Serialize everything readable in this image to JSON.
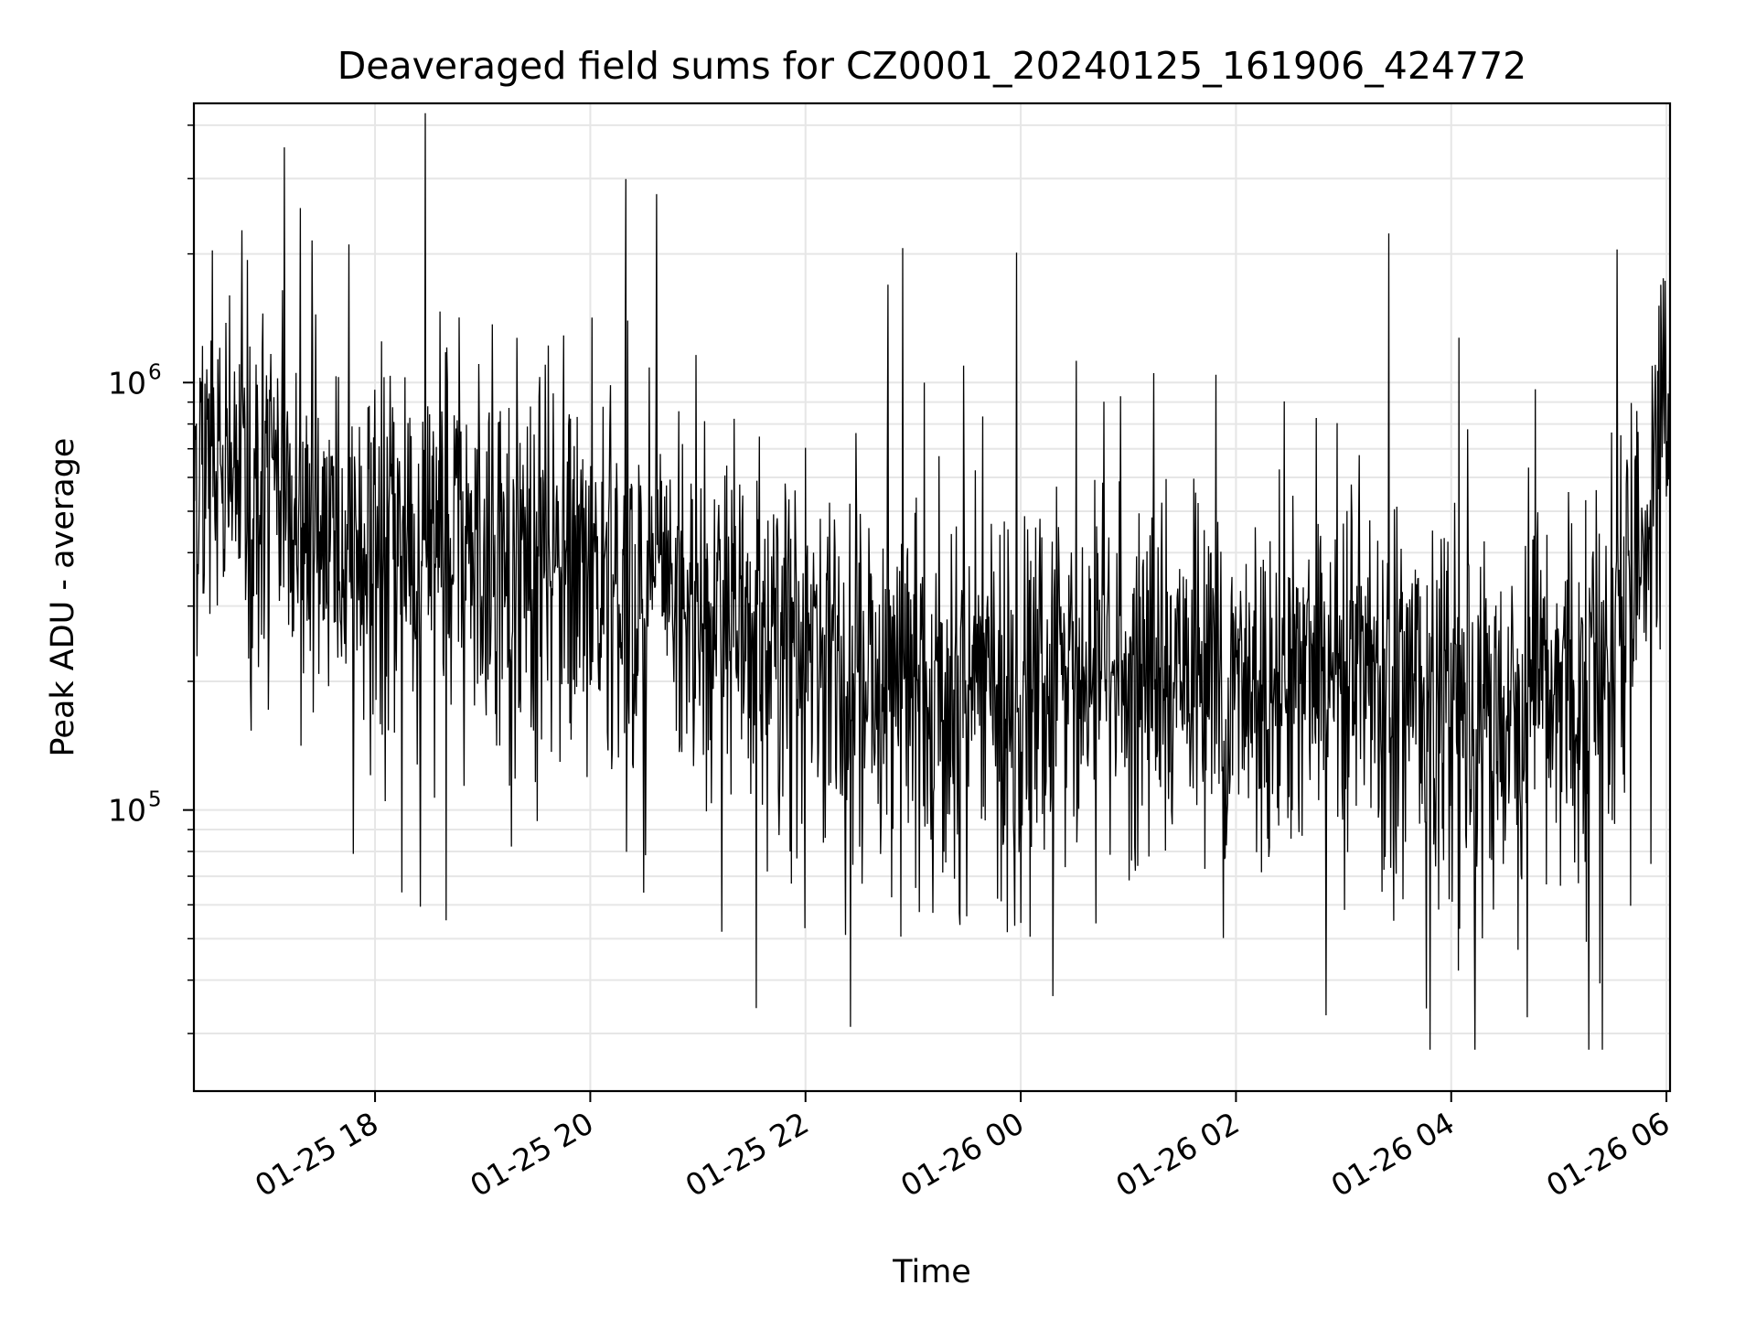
{
  "chart_data": {
    "type": "line",
    "title": "Deaveraged field sums for CZ0001_20240125_161906_424772",
    "xlabel": "Time",
    "ylabel": "Peak ADU - average",
    "x_ticks": [
      "01-25 18",
      "01-25 20",
      "01-25 22",
      "01-26 00",
      "01-26 02",
      "01-26 04",
      "01-26 06"
    ],
    "y_ticks": [
      {
        "base": "10",
        "exp": "5",
        "value": 100000
      },
      {
        "base": "10",
        "exp": "6",
        "value": 1000000
      }
    ],
    "x_range": [
      "2024-01-25 16:19",
      "2024-01-26 06:02"
    ],
    "ylim": [
      22000,
      4500000
    ],
    "yscale": "log",
    "grid": true,
    "line_color": "#000000",
    "grid_color": "#e6e6e6",
    "series": [
      {
        "x": [
          "2024-01-25 16:30",
          "2024-01-25 17:00",
          "2024-01-25 17:30",
          "2024-01-25 18:00",
          "2024-01-25 18:30",
          "2024-01-25 19:00",
          "2024-01-25 19:30",
          "2024-01-25 20:00",
          "2024-01-25 20:30",
          "2024-01-25 21:00",
          "2024-01-25 21:30",
          "2024-01-25 22:00",
          "2024-01-25 22:30",
          "2024-01-25 23:00",
          "2024-01-25 23:30",
          "2024-01-26 00:00",
          "2024-01-26 00:30",
          "2024-01-26 01:00",
          "2024-01-26 01:30",
          "2024-01-26 02:00",
          "2024-01-26 02:30",
          "2024-01-26 03:00",
          "2024-01-26 03:30",
          "2024-01-26 04:00",
          "2024-01-26 04:30",
          "2024-01-26 05:00",
          "2024-01-26 05:30",
          "2024-01-26 06:00"
        ],
        "values": [
          650000,
          550000,
          450000,
          380000,
          400000,
          420000,
          360000,
          350000,
          330000,
          280000,
          250000,
          260000,
          200000,
          180000,
          200000,
          170000,
          190000,
          210000,
          220000,
          180000,
          220000,
          230000,
          210000,
          160000,
          170000,
          190000,
          230000,
          750000
        ]
      }
    ]
  }
}
